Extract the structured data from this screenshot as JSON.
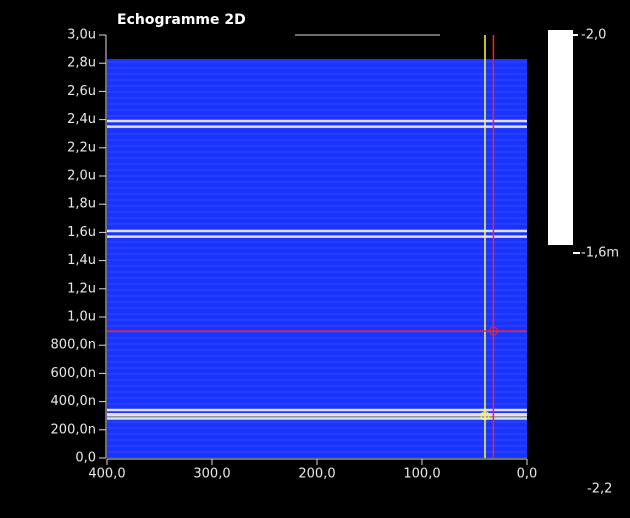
{
  "chart_data": {
    "type": "heatmap",
    "title": "Echogramme 2D",
    "xlim": [
      400,
      0
    ],
    "xticks": [
      {
        "value": 400,
        "label": "400,0"
      },
      {
        "value": 300,
        "label": "300,0"
      },
      {
        "value": 200,
        "label": "200,0"
      },
      {
        "value": 100,
        "label": "100,0"
      },
      {
        "value": 0,
        "label": "0,0"
      }
    ],
    "ylim": [
      0,
      3.0
    ],
    "yticks": [
      {
        "value": 3.0,
        "label": "3,0u"
      },
      {
        "value": 2.8,
        "label": "2,8u"
      },
      {
        "value": 2.6,
        "label": "2,6u"
      },
      {
        "value": 2.4,
        "label": "2,4u"
      },
      {
        "value": 2.2,
        "label": "2,2u"
      },
      {
        "value": 2.0,
        "label": "2,0u"
      },
      {
        "value": 1.8,
        "label": "1,8u"
      },
      {
        "value": 1.6,
        "label": "1,6u"
      },
      {
        "value": 1.4,
        "label": "1,4u"
      },
      {
        "value": 1.2,
        "label": "1,2u"
      },
      {
        "value": 1.0,
        "label": "1,0u"
      },
      {
        "value": 0.8,
        "label": "800,0n"
      },
      {
        "value": 0.6,
        "label": "600,0n"
      },
      {
        "value": 0.4,
        "label": "400,0n"
      },
      {
        "value": 0.2,
        "label": "200,0n"
      },
      {
        "value": 0,
        "label": "0,0"
      }
    ],
    "background_color": "#1a33ff",
    "background_top": 2.83,
    "echo_lines": [
      2.39,
      2.35,
      1.61,
      1.57,
      0.34,
      0.31,
      0.28
    ],
    "cursors": [
      {
        "color": "#ffff33",
        "x": 40,
        "y": 0.3
      },
      {
        "color": "#ff2020",
        "x": 32,
        "y": 0.9
      }
    ],
    "colorbar": {
      "labels": [
        "-2,0",
        "-1,6m",
        "-2,2"
      ]
    }
  }
}
